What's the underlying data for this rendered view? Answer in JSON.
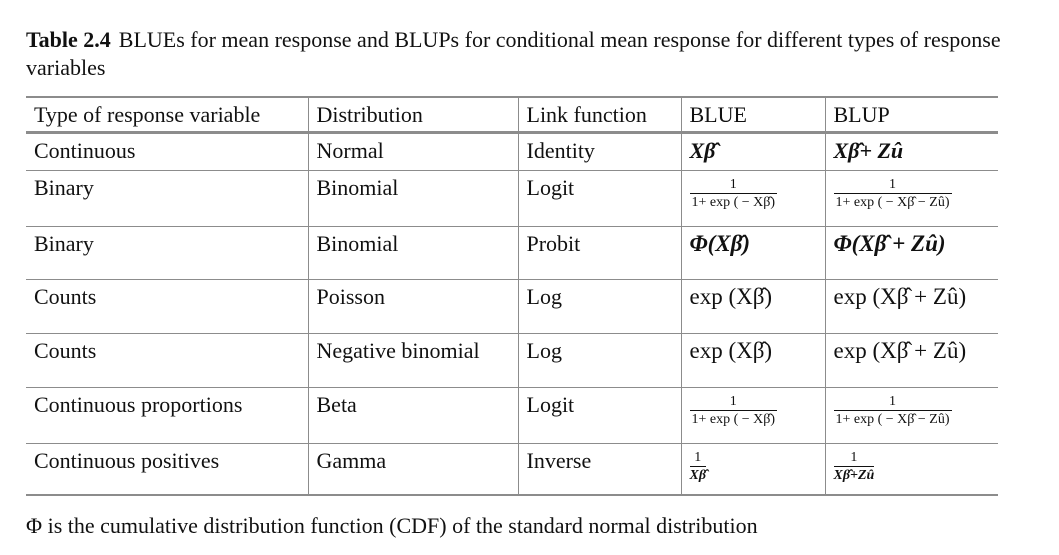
{
  "caption": {
    "label": "Table 2.4",
    "text": "BLUEs for mean response and BLUPs for conditional mean response for different types of response variables"
  },
  "table": {
    "headers": [
      "Type of response variable",
      "Distribution",
      "Link function",
      "BLUE",
      "BLUP"
    ],
    "rows": [
      {
        "type": "Continuous",
        "distribution": "Normal",
        "link": "Identity",
        "blue": "Xβ̂",
        "blup": "Xβ̂+ Zû"
      },
      {
        "type": "Binary",
        "distribution": "Binomial",
        "link": "Logit",
        "blue_num": "1",
        "blue_den": "1+ exp ( − Xβ̂)",
        "blup_num": "1",
        "blup_den": "1+ exp ( − Xβ̂ − Zû)"
      },
      {
        "type": "Binary",
        "distribution": "Binomial",
        "link": "Probit",
        "blue": "Φ(Xβ̂)",
        "blup": "Φ(Xβ̂ + Zû)"
      },
      {
        "type": "Counts",
        "distribution": "Poisson",
        "link": "Log",
        "blue": "exp (Xβ̂)",
        "blup": "exp (Xβ̂ + Zû)"
      },
      {
        "type": "Counts",
        "distribution": "Negative binomial",
        "link": "Log",
        "blue": "exp (Xβ̂)",
        "blup": "exp (Xβ̂ + Zû)"
      },
      {
        "type": "Continuous proportions",
        "distribution": "Beta",
        "link": "Logit",
        "blue_num": "1",
        "blue_den": "1+ exp ( − Xβ̂)",
        "blup_num": "1",
        "blup_den": "1+ exp ( − Xβ̂ − Zû)"
      },
      {
        "type": "Continuous positives",
        "distribution": "Gamma",
        "link": "Inverse",
        "blue_num": "1",
        "blue_den": "Xβ̂",
        "blup_num": "1",
        "blup_den": "Xβ̂+Zû"
      }
    ]
  },
  "footnote": "Φ is the cumulative distribution function (CDF) of the standard normal distribution"
}
